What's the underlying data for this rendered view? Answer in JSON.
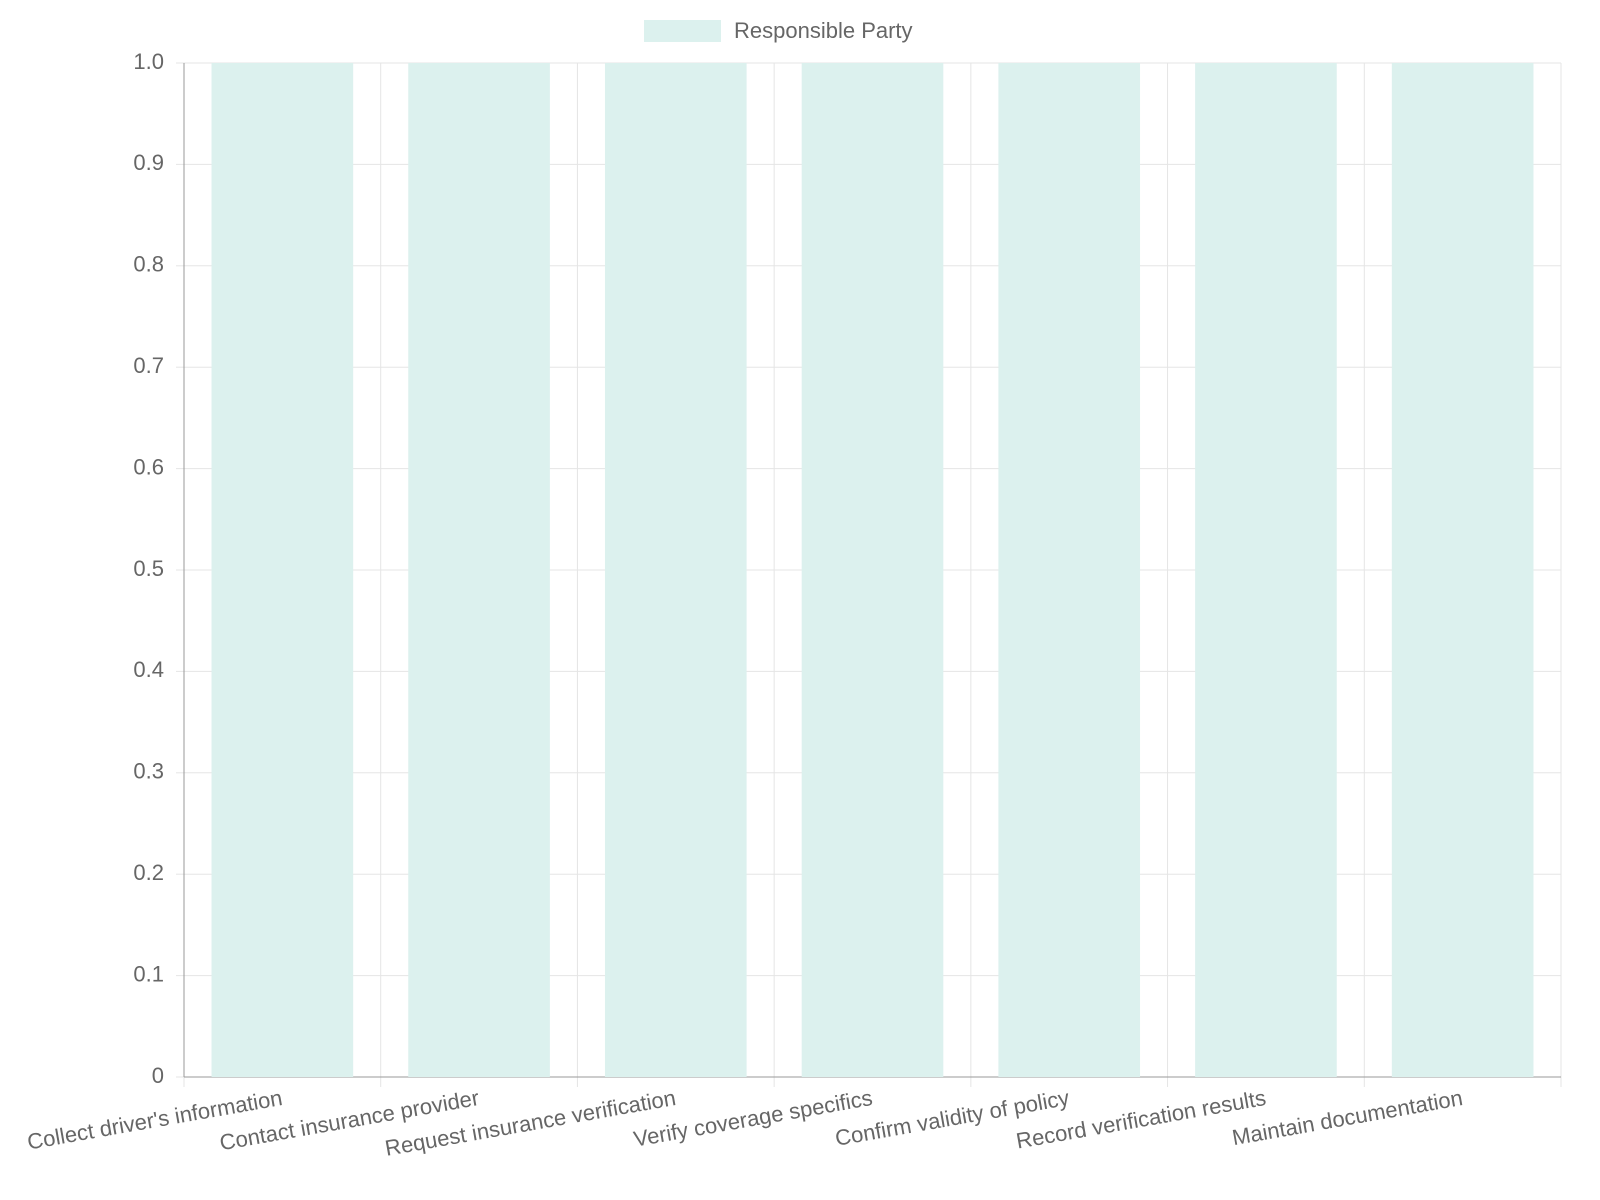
{
  "chart_data": {
    "type": "bar",
    "categories": [
      "Collect driver's information",
      "Contact insurance provider",
      "Request insurance verification",
      "Verify coverage specifics",
      "Confirm validity of policy",
      "Record verification results",
      "Maintain documentation"
    ],
    "series": [
      {
        "name": "Responsible Party",
        "color": "#dcf1ee",
        "values": [
          1,
          1,
          1,
          1,
          1,
          1,
          1
        ]
      }
    ],
    "ylim": [
      0,
      1
    ],
    "yticks": [
      0,
      0.1,
      0.2,
      0.3,
      0.4,
      0.5,
      0.6,
      0.7,
      0.8,
      0.9,
      {
        "value": 1,
        "label": "1.0"
      }
    ],
    "grid": true,
    "legend": "top"
  }
}
